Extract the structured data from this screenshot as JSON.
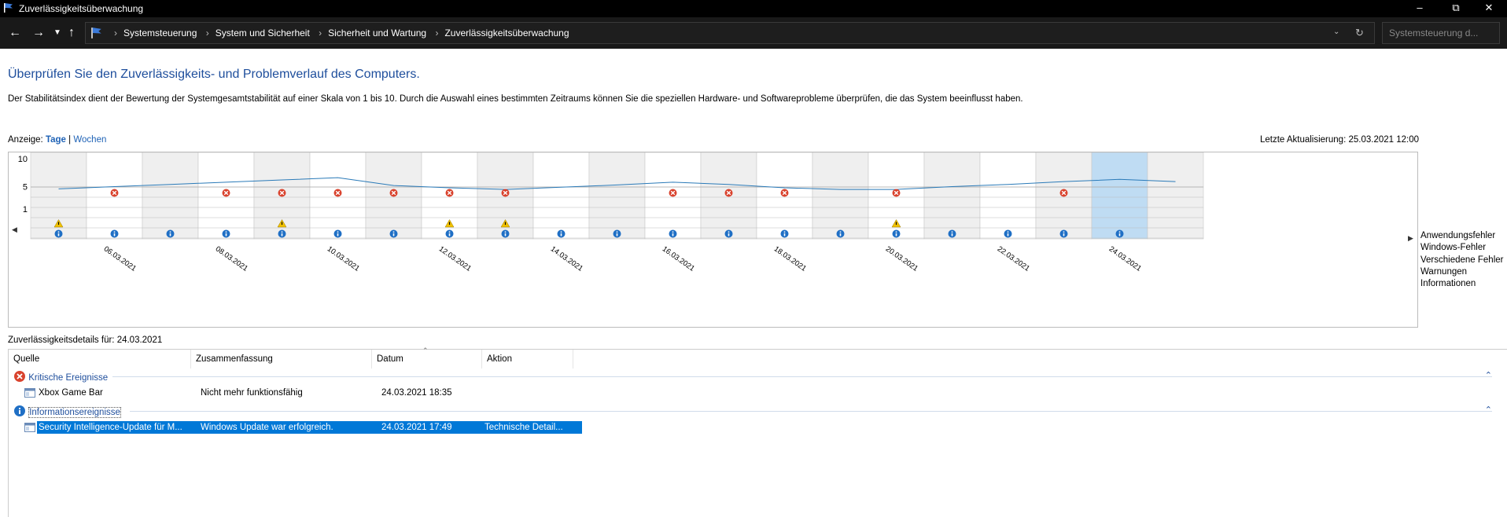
{
  "window": {
    "title": "Zuverlässigkeitsüberwachung"
  },
  "address": {
    "breadcrumbs": [
      "Systemsteuerung",
      "System und Sicherheit",
      "Sicherheit und Wartung",
      "Zuverlässigkeitsüberwachung"
    ],
    "search_placeholder": "Systemsteuerung d..."
  },
  "main": {
    "heading": "Überprüfen Sie den Zuverlässigkeits- und Problemverlauf des Computers.",
    "description": "Der Stabilitätsindex dient der Bewertung der Systemgesamtstabilität auf einer Skala von 1 bis 10. Durch die Auswahl eines bestimmten Zeitraums können Sie die speziellen Hardware- und Softwareprobleme überprüfen, die das System beeinflusst haben.",
    "view_label": "Anzeige:",
    "view_days": "Tage",
    "view_sep": "|",
    "view_weeks": "Wochen",
    "last_update": "Letzte Aktualisierung: 25.03.2021 12:00"
  },
  "chart_data": {
    "type": "line",
    "y_ticks": [
      "10",
      "5",
      "1"
    ],
    "ylim": [
      1,
      10
    ],
    "dates": [
      "05.03.2021",
      "06.03.2021",
      "07.03.2021",
      "08.03.2021",
      "09.03.2021",
      "10.03.2021",
      "11.03.2021",
      "12.03.2021",
      "13.03.2021",
      "14.03.2021",
      "15.03.2021",
      "16.03.2021",
      "17.03.2021",
      "18.03.2021",
      "19.03.2021",
      "20.03.2021",
      "21.03.2021",
      "22.03.2021",
      "23.03.2021",
      "24.03.2021",
      "25.03.2021"
    ],
    "date_labels": [
      "06.03.2021",
      "08.03.2021",
      "10.03.2021",
      "12.03.2021",
      "14.03.2021",
      "16.03.2021",
      "18.03.2021",
      "20.03.2021",
      "22.03.2021",
      "24.03.2021"
    ],
    "stability_index": [
      4.6,
      5.0,
      5.4,
      5.8,
      6.2,
      6.6,
      5.2,
      4.8,
      4.5,
      4.9,
      5.3,
      5.8,
      5.4,
      4.8,
      4.5,
      4.5,
      5.0,
      5.4,
      5.9,
      6.3,
      5.9
    ],
    "selected_date": "24.03.2021",
    "rows": [
      "Anwendungsfehler",
      "Windows-Fehler",
      "Verschiedene Fehler",
      "Warnungen",
      "Informationen"
    ],
    "application_errors": [
      0,
      1,
      0,
      1,
      1,
      1,
      1,
      1,
      1,
      0,
      0,
      1,
      1,
      1,
      0,
      1,
      0,
      0,
      1,
      0,
      0
    ],
    "warnings": [
      1,
      0,
      0,
      0,
      1,
      0,
      0,
      1,
      1,
      0,
      0,
      0,
      0,
      0,
      0,
      1,
      0,
      0,
      0,
      0,
      0
    ],
    "information": [
      1,
      1,
      1,
      1,
      1,
      1,
      1,
      1,
      1,
      1,
      1,
      1,
      1,
      1,
      1,
      1,
      1,
      1,
      1,
      1,
      0
    ],
    "colors": {
      "line": "#2a7ab8",
      "error": "#d9432e",
      "warning": "#f2c200",
      "info": "#1f6fc5",
      "selected": "#bfdcf3",
      "shade": "#efefef"
    }
  },
  "details": {
    "title": "Zuverlässigkeitsdetails für: 24.03.2021",
    "columns": [
      "Quelle",
      "Zusammenfassung",
      "Datum",
      "Aktion"
    ],
    "groups": [
      {
        "icon": "error-icon",
        "label": "Kritische Ereignisse",
        "rows": [
          {
            "source": "Xbox Game Bar",
            "summary": "Nicht mehr funktionsfähig",
            "date": "24.03.2021 18:35",
            "action": ""
          }
        ]
      },
      {
        "icon": "info-icon",
        "label": "Informationsereignisse",
        "rows": [
          {
            "source": "Security Intelligence-Update für M...",
            "summary": "Windows Update war erfolgreich.",
            "date": "24.03.2021 17:49",
            "action": "Technische Detail..."
          }
        ]
      }
    ]
  }
}
